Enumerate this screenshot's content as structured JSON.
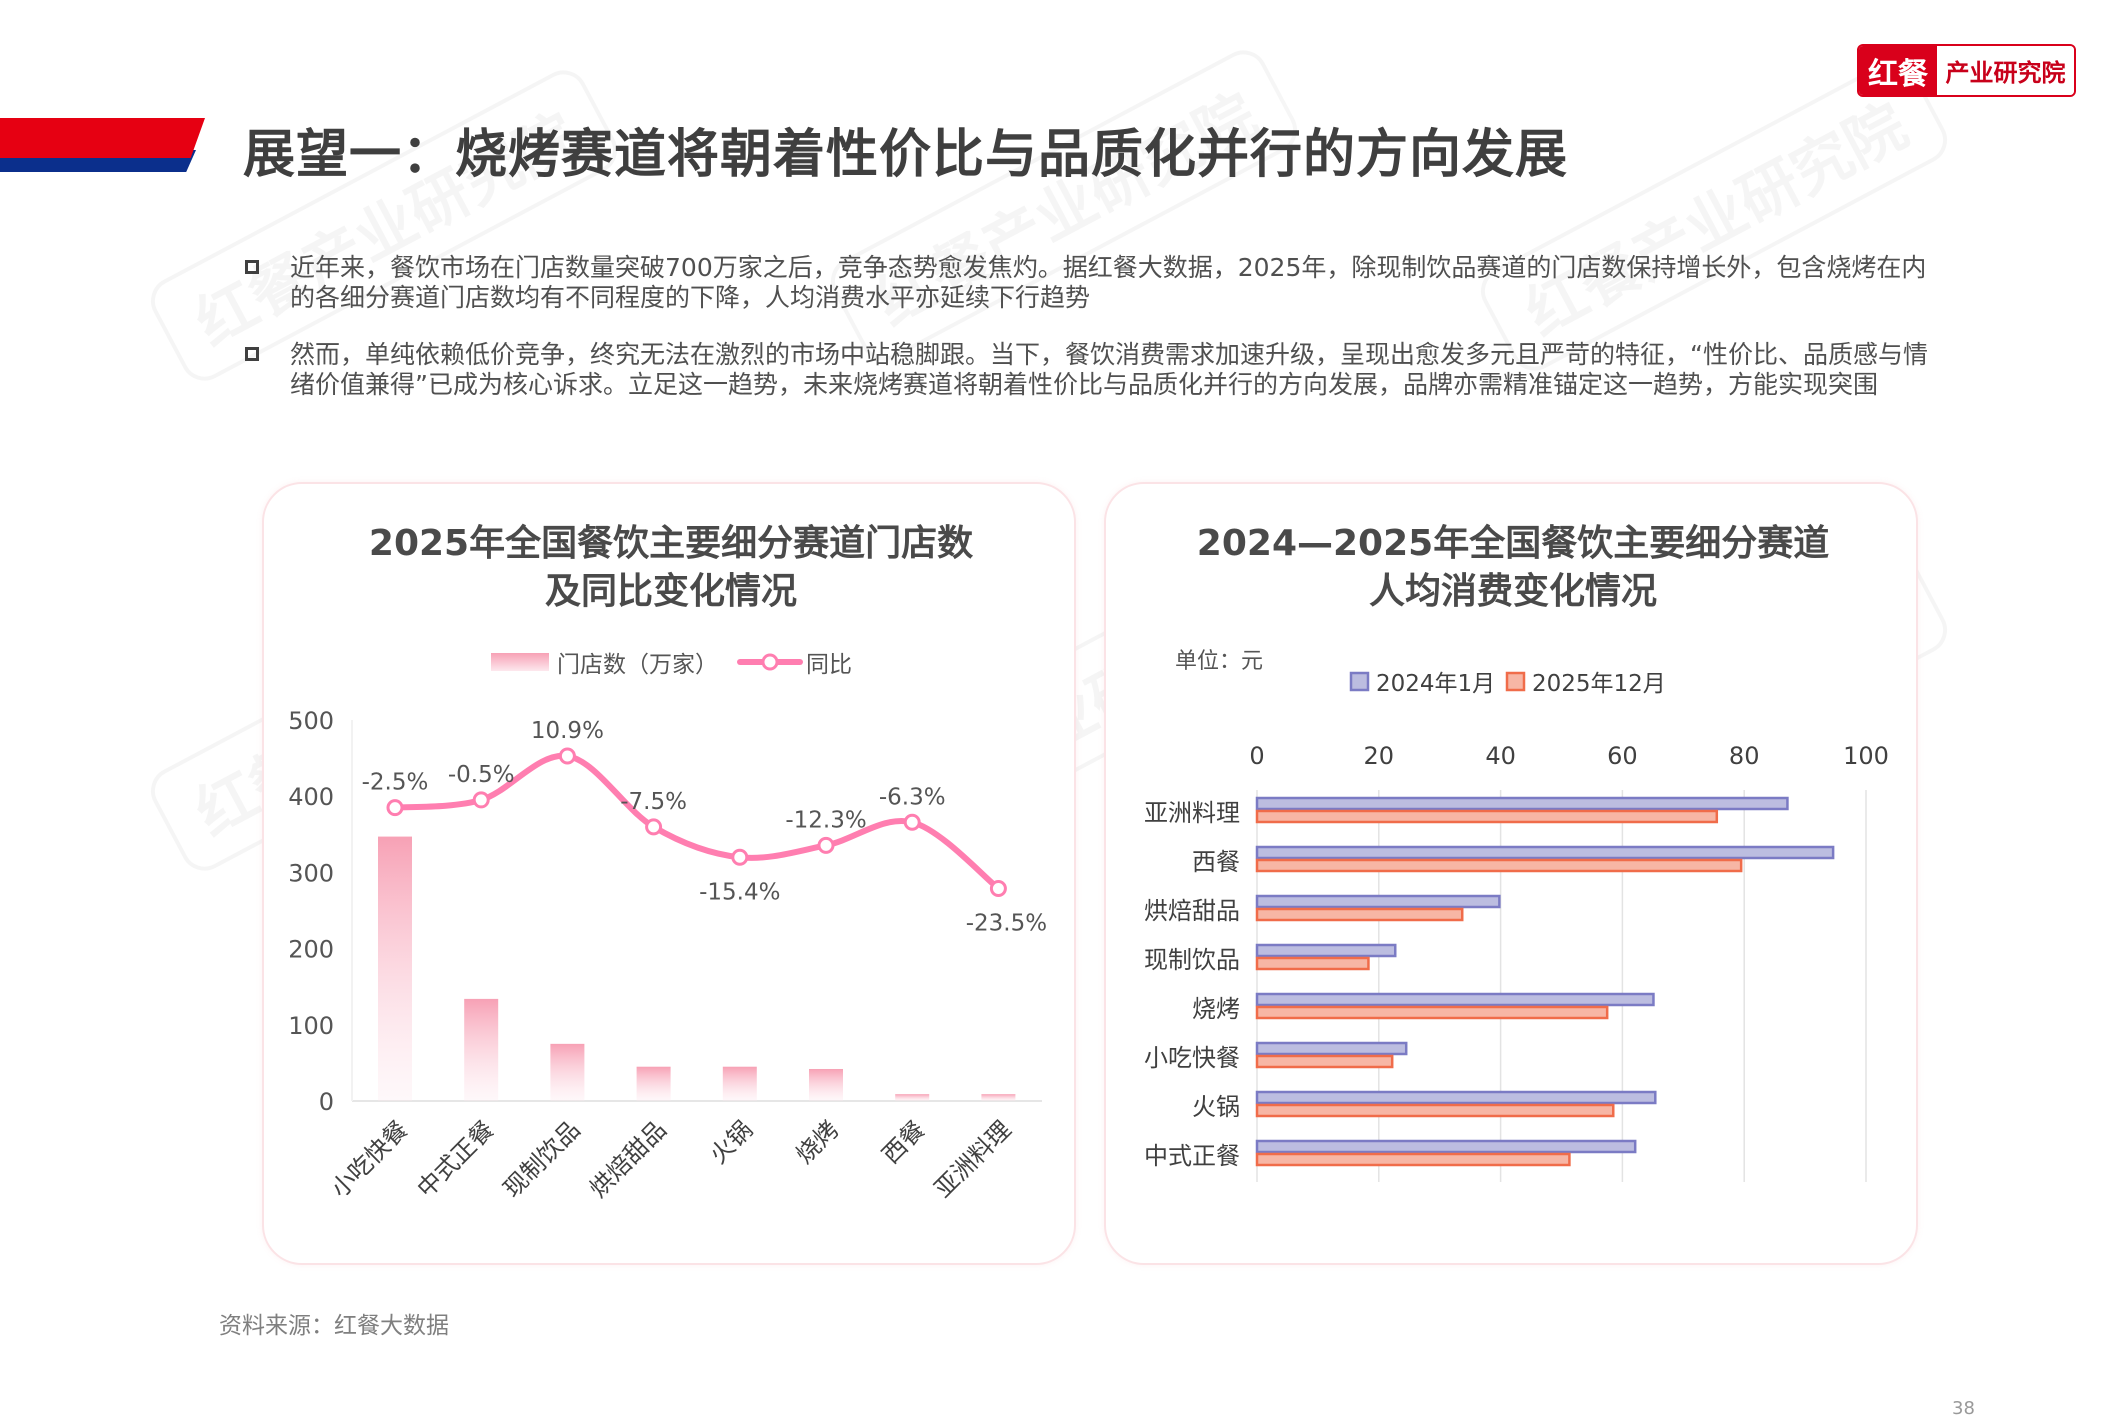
{
  "header": {
    "title": "展望一：烧烤赛道将朝着性价比与品质化并行的方向发展",
    "logo_left": "红餐",
    "logo_right": "产业研究院",
    "watermark": "红餐产业研究院"
  },
  "bullets": [
    "近年来，餐饮市场在门店数量突破700万家之后，竞争态势愈发焦灼。据红餐大数据，2025年，除现制饮品赛道的门店数保持增长外，包含烧烤在内的各细分赛道门店数均有不同程度的下降，人均消费水平亦延续下行趋势",
    "然而，单纯依赖低价竞争，终究无法在激烈的市场中站稳脚跟。当下，餐饮消费需求加速升级，呈现出愈发多元且严苛的特征，“性价比、品质感与情绪价值兼得”已成为核心诉求。立足这一趋势，未来烧烤赛道将朝着性价比与品质化并行的方向发展，品牌亦需精准锚定这一趋势，方能实现突围"
  ],
  "footer": {
    "source": "资料来源：红餐大数据",
    "page": "38"
  },
  "chart_data": [
    {
      "type": "bar+line",
      "title": [
        "2025年全国餐饮主要细分赛道门店数",
        "及同比变化情况"
      ],
      "categories": [
        "小吃快餐",
        "中式正餐",
        "现制饮品",
        "烘焙甜品",
        "火锅",
        "烧烤",
        "西餐",
        "亚洲料理"
      ],
      "series": [
        {
          "name": "门店数（万家）",
          "type": "bar",
          "values": [
            347,
            134,
            75,
            45,
            45,
            42,
            9,
            9
          ],
          "color": "#f7a1b5"
        },
        {
          "name": "同比",
          "type": "line",
          "values": [
            -2.5,
            -0.5,
            10.9,
            -7.5,
            -15.4,
            -12.3,
            -6.3,
            -23.5
          ],
          "labels": [
            "-2.5%",
            "-0.5%",
            "10.9%",
            "-7.5%",
            "-15.4%",
            "-12.3%",
            "-6.3%",
            "-23.5%"
          ],
          "color": "#ff7eb0"
        }
      ],
      "ylim": [
        0,
        500
      ],
      "yticks": [
        "0",
        "100",
        "200",
        "300",
        "400",
        "500"
      ],
      "grid": false,
      "legend": "top"
    },
    {
      "type": "bar",
      "orientation": "horizontal",
      "title": [
        "2024—2025年全国餐饮主要细分赛道",
        "人均消费变化情况"
      ],
      "unit": "单位：元",
      "categories": [
        "亚洲料理",
        "西餐",
        "烘焙甜品",
        "现制饮品",
        "烧烤",
        "小吃快餐",
        "火锅",
        "中式正餐"
      ],
      "series": [
        {
          "name": "2024年1月",
          "values": [
            87.1,
            94.6,
            39.8,
            22.7,
            65.1,
            24.5,
            65.4,
            62.1
          ],
          "fill": "#bcbde0",
          "stroke": "#7b7bc4"
        },
        {
          "name": "2025年12月",
          "values": [
            75.5,
            79.5,
            33.7,
            18.3,
            57.5,
            22.2,
            58.5,
            51.3
          ],
          "fill": "#f7b6a5",
          "stroke": "#f06c4a"
        }
      ],
      "xlim": [
        0,
        100
      ],
      "xticks": [
        "0",
        "20",
        "40",
        "60",
        "80",
        "100"
      ],
      "grid": true,
      "legend": "top"
    }
  ]
}
